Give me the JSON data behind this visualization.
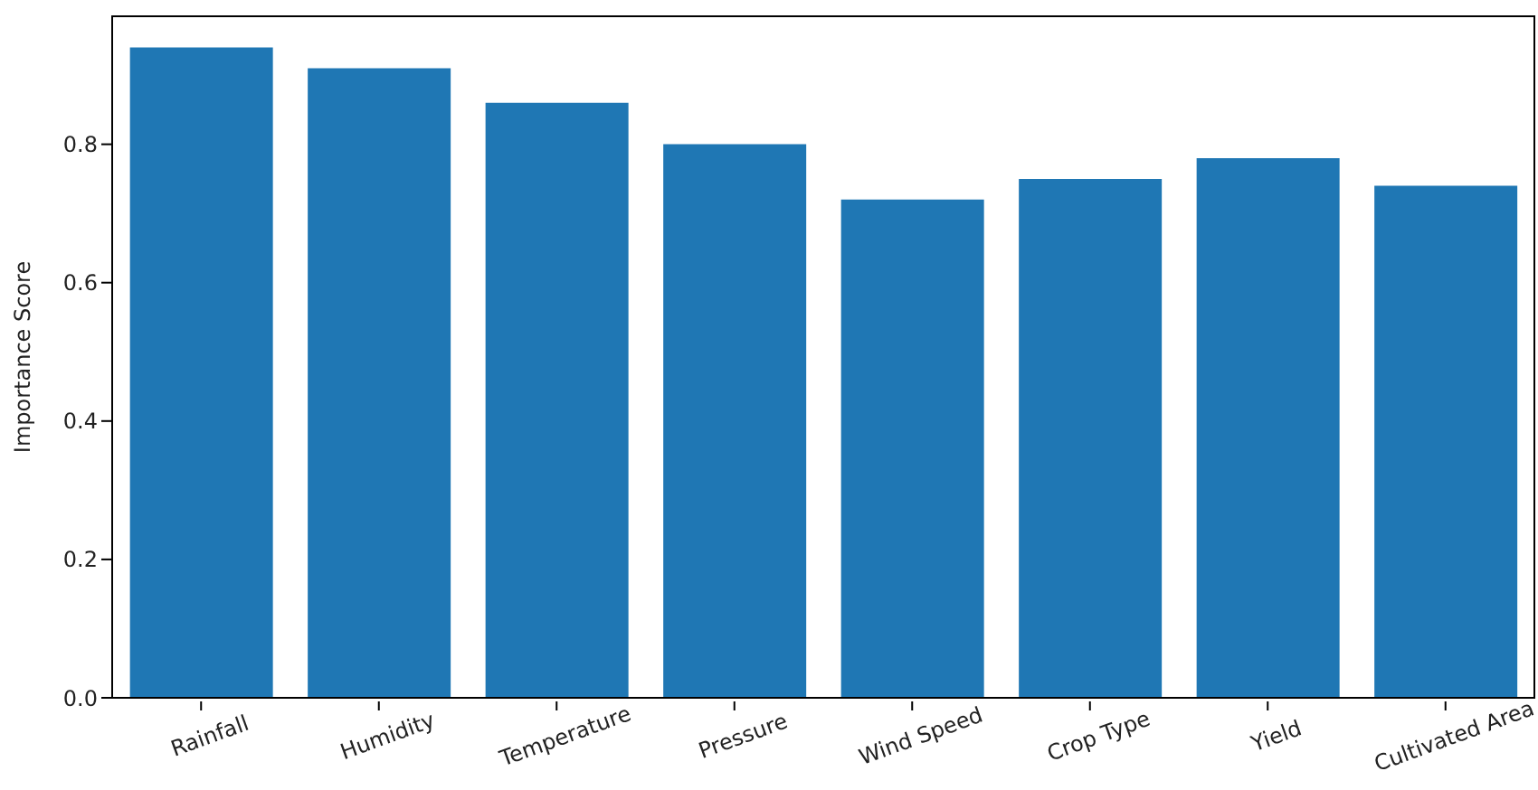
{
  "chart_data": {
    "type": "bar",
    "ylabel": "Importance Score",
    "categories": [
      "Rainfall",
      "Humidity",
      "Temperature",
      "Pressure",
      "Wind Speed",
      "Crop Type",
      "Yield",
      "Cultivated Area"
    ],
    "values": [
      0.94,
      0.91,
      0.86,
      0.8,
      0.72,
      0.75,
      0.78,
      0.74
    ],
    "color": "#1f77b4",
    "ylim": [
      0,
      0.985
    ],
    "yticks": [
      {
        "value": 0,
        "label": "0.0"
      },
      {
        "value": 0.2,
        "label": "0.2"
      },
      {
        "value": 0.4,
        "label": "0.4"
      },
      {
        "value": 0.6,
        "label": "0.6"
      },
      {
        "value": 0.8,
        "label": "0.8"
      }
    ],
    "grid": false,
    "legend": false
  }
}
